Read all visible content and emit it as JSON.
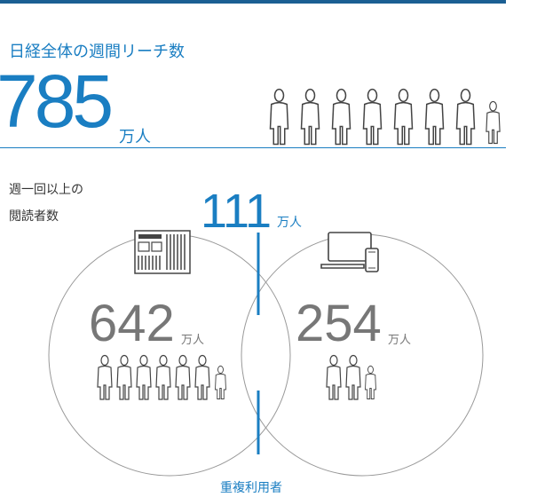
{
  "header": {
    "title": "日経全体の週間リーチ数",
    "total_value": "785",
    "total_unit": "万人"
  },
  "side_label": {
    "line1": "週一回以上の",
    "line2": "閲読者数"
  },
  "overlap": {
    "value": "111",
    "unit": "万人",
    "label": "重複利用者"
  },
  "newspaper": {
    "value": "642",
    "unit": "万人"
  },
  "digital": {
    "value": "254",
    "unit": "万人"
  },
  "icons": {
    "people_total": "person-icon",
    "people_newspaper": "person-icon",
    "people_digital": "person-icon",
    "newspaper": "newspaper-icon",
    "devices": "laptop-phone-icon"
  },
  "colors": {
    "accent": "#1a7ec2",
    "bar": "#1b5f93",
    "number_gray": "#777777",
    "circle": "#999999"
  }
}
